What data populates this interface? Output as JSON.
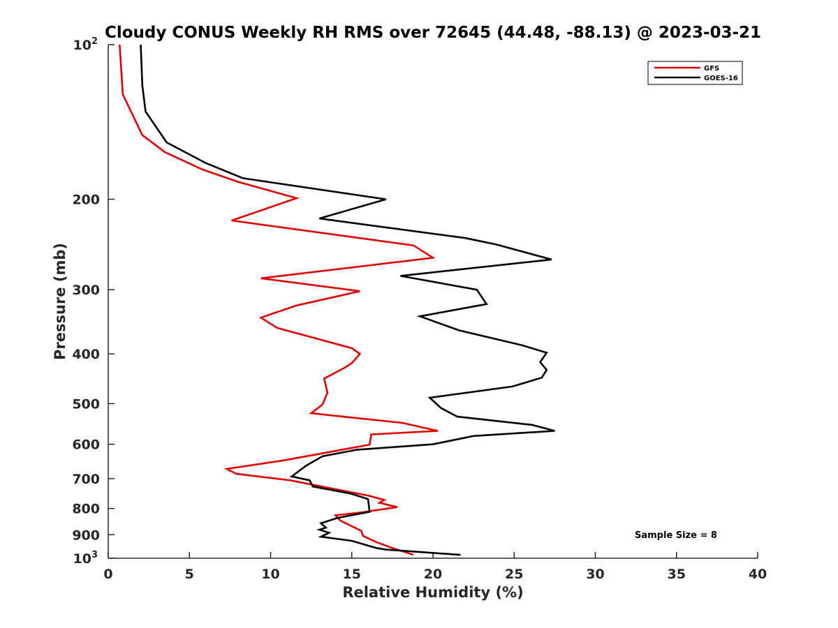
{
  "chart_data": {
    "type": "line",
    "title": "Cloudy CONUS Weekly RH RMS over 72645 (44.48, -88.13) @ 2023-03-21",
    "xlabel": "Relative Humidity (%)",
    "ylabel": "Pressure (mb)",
    "xlim": [
      0,
      40
    ],
    "ylim": [
      100,
      1000
    ],
    "y_scale": "log",
    "y_reversed": true,
    "x_ticks": [
      0,
      5,
      10,
      15,
      20,
      25,
      30,
      35,
      40
    ],
    "y_ticks": [
      {
        "value": 100,
        "label": "10",
        "sup": "2"
      },
      {
        "value": 200,
        "label": "200"
      },
      {
        "value": 300,
        "label": "300"
      },
      {
        "value": 400,
        "label": "400"
      },
      {
        "value": 500,
        "label": "500"
      },
      {
        "value": 600,
        "label": "600"
      },
      {
        "value": 700,
        "label": "700"
      },
      {
        "value": 800,
        "label": "800"
      },
      {
        "value": 900,
        "label": "900"
      },
      {
        "value": 1000,
        "label": "10",
        "sup": "3"
      }
    ],
    "grid": false,
    "legend_position": "top-right",
    "annotation": "Sample Size = 8",
    "series": [
      {
        "name": "GFS",
        "color": "#e00000",
        "points": [
          [
            0.7,
            100
          ],
          [
            0.9,
            125
          ],
          [
            2.1,
            150
          ],
          [
            3.5,
            162
          ],
          [
            5.8,
            175
          ],
          [
            8.0,
            185
          ],
          [
            11.6,
            199
          ],
          [
            7.6,
            220
          ],
          [
            18.8,
            246
          ],
          [
            20.0,
            260
          ],
          [
            9.4,
            285
          ],
          [
            15.5,
            302
          ],
          [
            11.6,
            322
          ],
          [
            9.4,
            340
          ],
          [
            10.4,
            356
          ],
          [
            15.0,
            390
          ],
          [
            15.5,
            400
          ],
          [
            15.0,
            417
          ],
          [
            14.6,
            425
          ],
          [
            13.3,
            447
          ],
          [
            13.5,
            476
          ],
          [
            13.2,
            502
          ],
          [
            12.5,
            522
          ],
          [
            18.1,
            545
          ],
          [
            20.3,
            565
          ],
          [
            16.2,
            574
          ],
          [
            16.1,
            601
          ],
          [
            10.8,
            645
          ],
          [
            7.3,
            670
          ],
          [
            7.9,
            685
          ],
          [
            11.2,
            705
          ],
          [
            16.0,
            755
          ],
          [
            17.0,
            770
          ],
          [
            16.7,
            780
          ],
          [
            17.8,
            795
          ],
          [
            15.5,
            815
          ],
          [
            14.0,
            825
          ],
          [
            14.3,
            845
          ],
          [
            15.6,
            885
          ],
          [
            15.7,
            905
          ],
          [
            16.5,
            930
          ],
          [
            17.5,
            955
          ],
          [
            18.8,
            985
          ]
        ]
      },
      {
        "name": "GOES-16",
        "color": "#000000",
        "points": [
          [
            2.0,
            100
          ],
          [
            2.1,
            120
          ],
          [
            2.3,
            135
          ],
          [
            3.6,
            155
          ],
          [
            6.0,
            170
          ],
          [
            8.3,
            182
          ],
          [
            17.1,
            200
          ],
          [
            13.0,
            218
          ],
          [
            22.0,
            238
          ],
          [
            23.9,
            245
          ],
          [
            27.3,
            262
          ],
          [
            18.0,
            282
          ],
          [
            22.7,
            300
          ],
          [
            23.3,
            320
          ],
          [
            19.2,
            338
          ],
          [
            21.6,
            360
          ],
          [
            25.5,
            385
          ],
          [
            27.0,
            398
          ],
          [
            26.6,
            415
          ],
          [
            27.0,
            430
          ],
          [
            26.7,
            445
          ],
          [
            24.9,
            463
          ],
          [
            19.8,
            487
          ],
          [
            20.5,
            510
          ],
          [
            21.5,
            530
          ],
          [
            26.1,
            550
          ],
          [
            27.5,
            565
          ],
          [
            22.5,
            578
          ],
          [
            20.0,
            600
          ],
          [
            15.3,
            615
          ],
          [
            13.2,
            633
          ],
          [
            12.2,
            660
          ],
          [
            11.3,
            693
          ],
          [
            12.4,
            705
          ],
          [
            12.6,
            725
          ],
          [
            14.9,
            748
          ],
          [
            16.0,
            767
          ],
          [
            16.1,
            812
          ],
          [
            14.1,
            835
          ],
          [
            13.1,
            855
          ],
          [
            13.4,
            872
          ],
          [
            13.0,
            880
          ],
          [
            13.6,
            892
          ],
          [
            13.1,
            908
          ],
          [
            15.0,
            925
          ],
          [
            16.5,
            955
          ],
          [
            17.1,
            962
          ],
          [
            21.7,
            985
          ]
        ]
      }
    ]
  }
}
